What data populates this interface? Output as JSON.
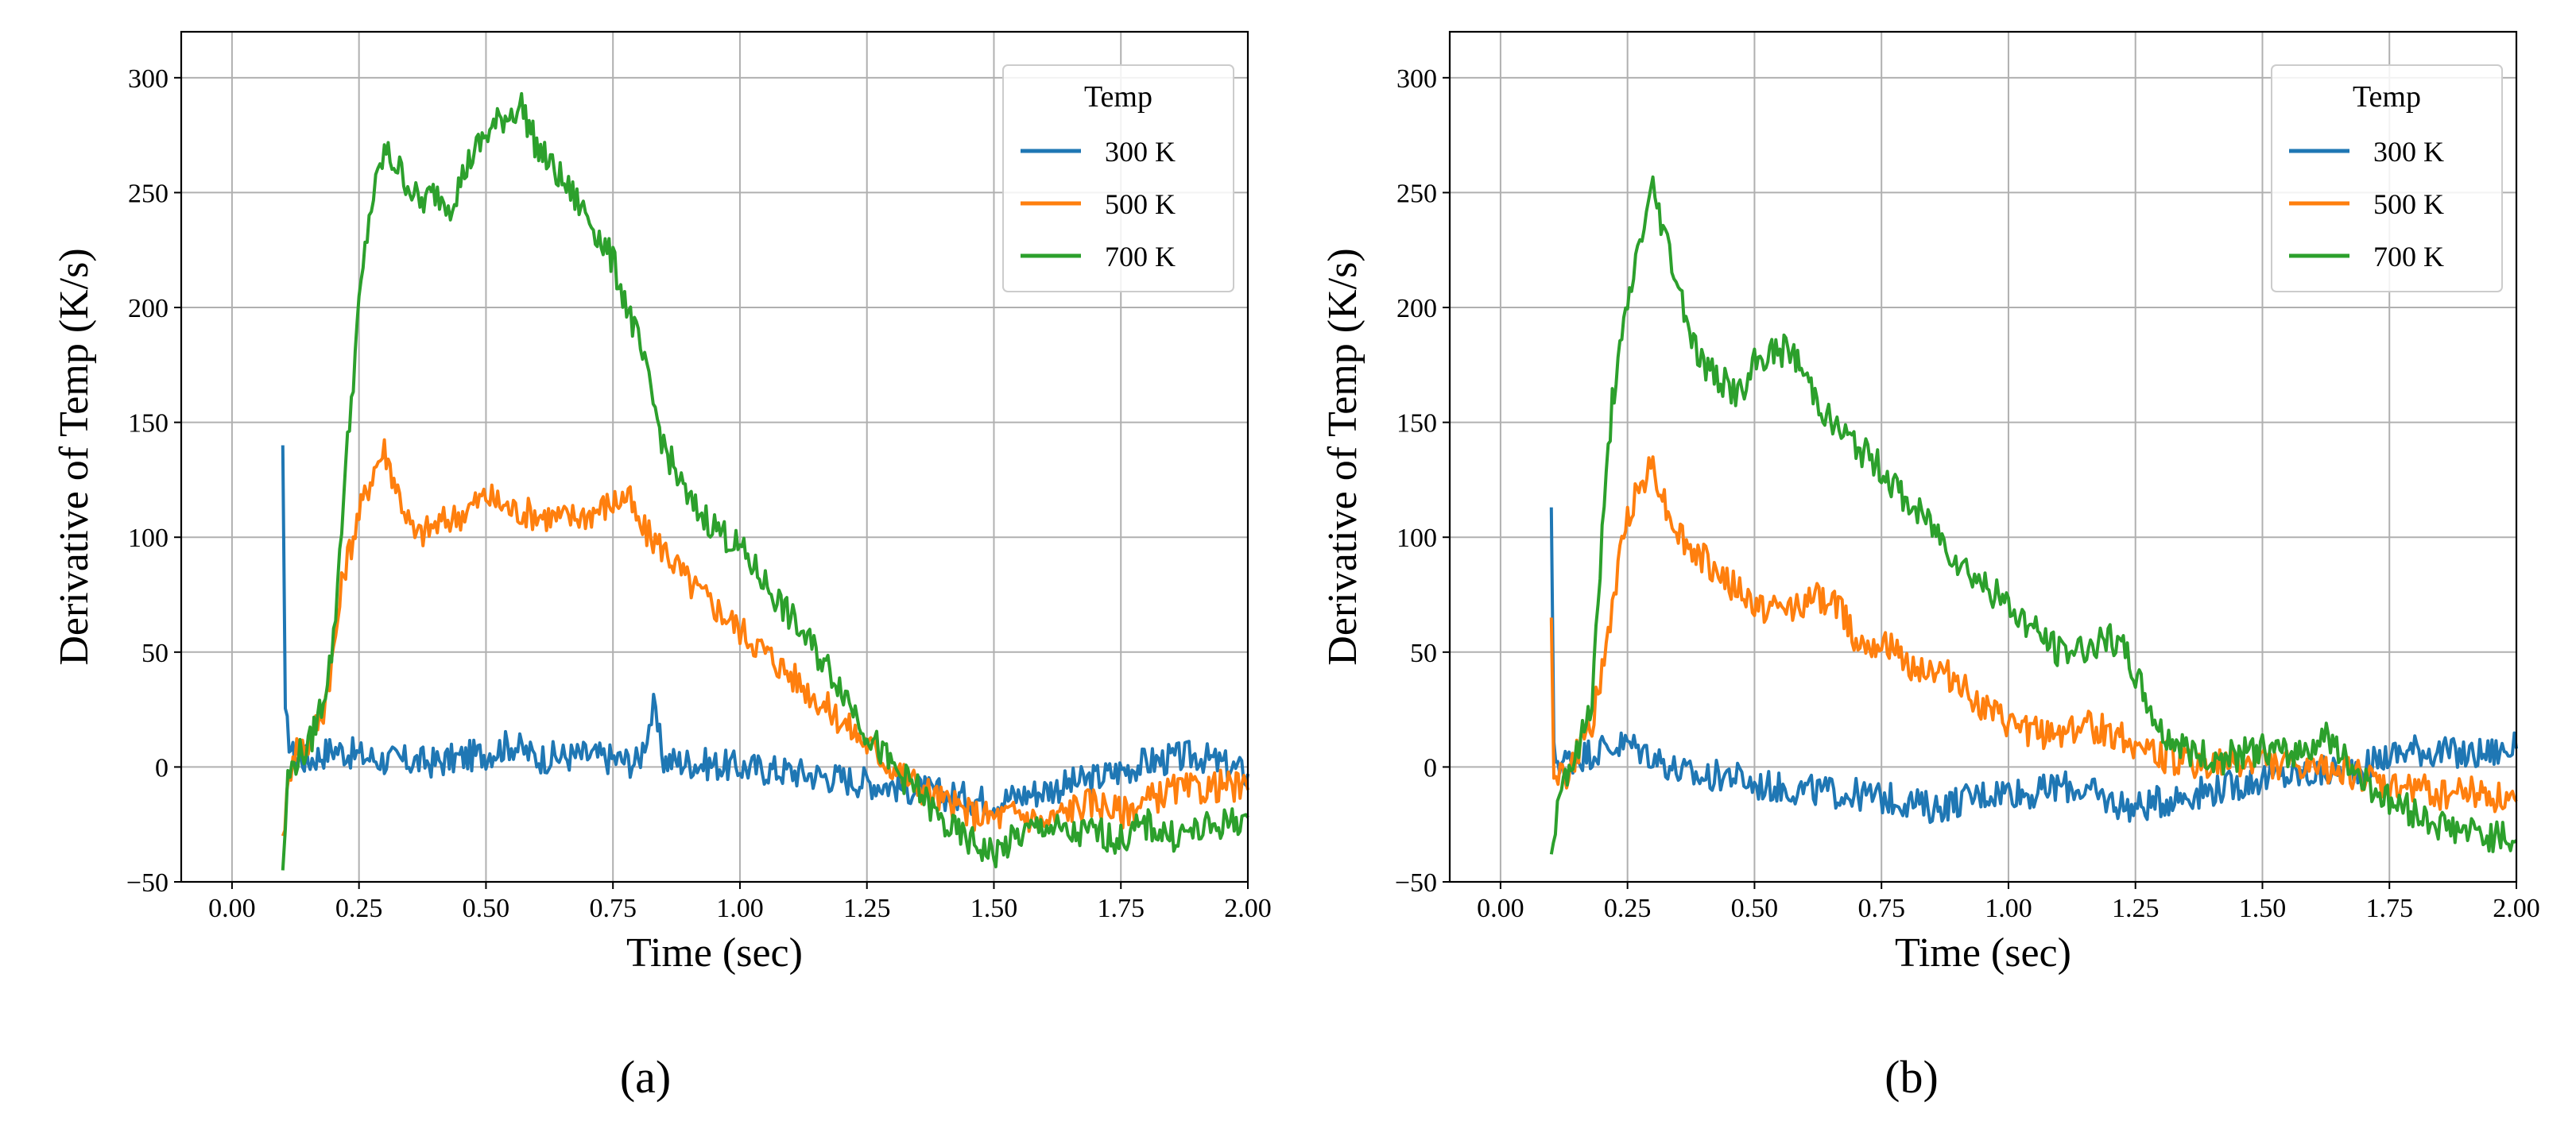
{
  "chart_data": [
    {
      "type": "line",
      "panel_label": "(a)",
      "title": "",
      "xlabel": "Time (sec)",
      "ylabel": "Derivative of Temp (K/s)",
      "xlim": [
        -0.1,
        2.0
      ],
      "ylim": [
        -50,
        320
      ],
      "xticks": [
        "0.00",
        "0.25",
        "0.50",
        "0.75",
        "1.00",
        "1.25",
        "1.50",
        "1.75",
        "2.00"
      ],
      "yticks": [
        "−50",
        "0",
        "50",
        "100",
        "150",
        "200",
        "250",
        "300"
      ],
      "grid": true,
      "legend": {
        "title": "Temp",
        "position": "top-right"
      },
      "series": [
        {
          "name": "300 K",
          "color": "#1f77b4",
          "points": [
            [
              0.1,
              140
            ],
            [
              0.105,
              20
            ],
            [
              0.12,
              5
            ],
            [
              0.15,
              3
            ],
            [
              0.2,
              8
            ],
            [
              0.25,
              5
            ],
            [
              0.3,
              3
            ],
            [
              0.4,
              2
            ],
            [
              0.5,
              6
            ],
            [
              0.55,
              10
            ],
            [
              0.6,
              4
            ],
            [
              0.7,
              5
            ],
            [
              0.8,
              2
            ],
            [
              0.83,
              25
            ],
            [
              0.85,
              3
            ],
            [
              0.9,
              2
            ],
            [
              1.0,
              0
            ],
            [
              1.1,
              -2
            ],
            [
              1.2,
              -5
            ],
            [
              1.3,
              -8
            ],
            [
              1.4,
              -12
            ],
            [
              1.5,
              -15
            ],
            [
              1.6,
              -10
            ],
            [
              1.7,
              -5
            ],
            [
              1.8,
              2
            ],
            [
              1.9,
              5
            ],
            [
              2.0,
              -3
            ]
          ]
        },
        {
          "name": "500 K",
          "color": "#ff7f0e",
          "points": [
            [
              0.1,
              -30
            ],
            [
              0.12,
              8
            ],
            [
              0.15,
              10
            ],
            [
              0.18,
              25
            ],
            [
              0.2,
              50
            ],
            [
              0.22,
              85
            ],
            [
              0.25,
              110
            ],
            [
              0.28,
              130
            ],
            [
              0.3,
              138
            ],
            [
              0.33,
              118
            ],
            [
              0.36,
              100
            ],
            [
              0.4,
              105
            ],
            [
              0.45,
              110
            ],
            [
              0.5,
              118
            ],
            [
              0.55,
              112
            ],
            [
              0.6,
              110
            ],
            [
              0.65,
              108
            ],
            [
              0.7,
              110
            ],
            [
              0.75,
              115
            ],
            [
              0.78,
              118
            ],
            [
              0.8,
              105
            ],
            [
              0.85,
              95
            ],
            [
              0.9,
              80
            ],
            [
              0.95,
              70
            ],
            [
              1.0,
              60
            ],
            [
              1.05,
              50
            ],
            [
              1.1,
              40
            ],
            [
              1.15,
              30
            ],
            [
              1.2,
              20
            ],
            [
              1.25,
              10
            ],
            [
              1.3,
              0
            ],
            [
              1.35,
              -8
            ],
            [
              1.4,
              -15
            ],
            [
              1.45,
              -20
            ],
            [
              1.5,
              -22
            ],
            [
              1.55,
              -20
            ],
            [
              1.6,
              -25
            ],
            [
              1.65,
              -18
            ],
            [
              1.7,
              -15
            ],
            [
              1.75,
              -20
            ],
            [
              1.8,
              -15
            ],
            [
              1.85,
              -10
            ],
            [
              1.9,
              -10
            ],
            [
              1.95,
              -8
            ],
            [
              2.0,
              -10
            ]
          ]
        },
        {
          "name": "700 K",
          "color": "#2ca02c",
          "points": [
            [
              0.1,
              -45
            ],
            [
              0.11,
              -5
            ],
            [
              0.13,
              5
            ],
            [
              0.15,
              8
            ],
            [
              0.18,
              30
            ],
            [
              0.2,
              55
            ],
            [
              0.22,
              120
            ],
            [
              0.25,
              200
            ],
            [
              0.27,
              240
            ],
            [
              0.3,
              268
            ],
            [
              0.33,
              260
            ],
            [
              0.37,
              245
            ],
            [
              0.4,
              250
            ],
            [
              0.43,
              245
            ],
            [
              0.47,
              265
            ],
            [
              0.5,
              275
            ],
            [
              0.53,
              282
            ],
            [
              0.57,
              288
            ],
            [
              0.6,
              270
            ],
            [
              0.65,
              255
            ],
            [
              0.7,
              240
            ],
            [
              0.75,
              220
            ],
            [
              0.8,
              185
            ],
            [
              0.85,
              140
            ],
            [
              0.9,
              115
            ],
            [
              0.95,
              105
            ],
            [
              1.0,
              95
            ],
            [
              1.05,
              80
            ],
            [
              1.1,
              65
            ],
            [
              1.15,
              50
            ],
            [
              1.2,
              35
            ],
            [
              1.25,
              15
            ],
            [
              1.3,
              0
            ],
            [
              1.35,
              -10
            ],
            [
              1.4,
              -25
            ],
            [
              1.45,
              -32
            ],
            [
              1.5,
              -38
            ],
            [
              1.55,
              -30
            ],
            [
              1.6,
              -25
            ],
            [
              1.65,
              -30
            ],
            [
              1.7,
              -28
            ],
            [
              1.75,
              -32
            ],
            [
              1.8,
              -25
            ],
            [
              1.85,
              -30
            ],
            [
              1.9,
              -28
            ],
            [
              1.95,
              -25
            ],
            [
              2.0,
              -22
            ]
          ]
        }
      ]
    },
    {
      "type": "line",
      "panel_label": "(b)",
      "title": "",
      "xlabel": "Time (sec)",
      "ylabel": "Derivative of Temp (K/s)",
      "xlim": [
        -0.1,
        2.0
      ],
      "ylim": [
        -50,
        320
      ],
      "xticks": [
        "0.00",
        "0.25",
        "0.50",
        "0.75",
        "1.00",
        "1.25",
        "1.50",
        "1.75",
        "2.00"
      ],
      "yticks": [
        "−50",
        "0",
        "50",
        "100",
        "150",
        "200",
        "250",
        "300"
      ],
      "grid": true,
      "legend": {
        "title": "Temp",
        "position": "top-right"
      },
      "series": [
        {
          "name": "300 K",
          "color": "#1f77b4",
          "points": [
            [
              0.1,
              113
            ],
            [
              0.105,
              5
            ],
            [
              0.12,
              2
            ],
            [
              0.15,
              4
            ],
            [
              0.2,
              8
            ],
            [
              0.25,
              10
            ],
            [
              0.3,
              5
            ],
            [
              0.35,
              -2
            ],
            [
              0.4,
              -5
            ],
            [
              0.45,
              -3
            ],
            [
              0.5,
              -8
            ],
            [
              0.6,
              -10
            ],
            [
              0.7,
              -12
            ],
            [
              0.8,
              -15
            ],
            [
              0.85,
              -18
            ],
            [
              0.9,
              -15
            ],
            [
              0.95,
              -12
            ],
            [
              1.0,
              -10
            ],
            [
              1.05,
              -12
            ],
            [
              1.1,
              -8
            ],
            [
              1.15,
              -10
            ],
            [
              1.2,
              -15
            ],
            [
              1.25,
              -18
            ],
            [
              1.3,
              -15
            ],
            [
              1.35,
              -12
            ],
            [
              1.4,
              -10
            ],
            [
              1.45,
              -8
            ],
            [
              1.5,
              -5
            ],
            [
              1.6,
              -3
            ],
            [
              1.7,
              0
            ],
            [
              1.75,
              5
            ],
            [
              1.8,
              8
            ],
            [
              1.9,
              5
            ],
            [
              2.0,
              8
            ]
          ]
        },
        {
          "name": "500 K",
          "color": "#ff7f0e",
          "points": [
            [
              0.1,
              65
            ],
            [
              0.105,
              0
            ],
            [
              0.13,
              -5
            ],
            [
              0.15,
              5
            ],
            [
              0.18,
              20
            ],
            [
              0.2,
              40
            ],
            [
              0.22,
              70
            ],
            [
              0.25,
              110
            ],
            [
              0.28,
              125
            ],
            [
              0.3,
              132
            ],
            [
              0.33,
              110
            ],
            [
              0.37,
              95
            ],
            [
              0.4,
              90
            ],
            [
              0.45,
              80
            ],
            [
              0.5,
              70
            ],
            [
              0.55,
              68
            ],
            [
              0.6,
              72
            ],
            [
              0.65,
              74
            ],
            [
              0.68,
              65
            ],
            [
              0.7,
              55
            ],
            [
              0.75,
              55
            ],
            [
              0.8,
              45
            ],
            [
              0.85,
              42
            ],
            [
              0.9,
              38
            ],
            [
              0.93,
              30
            ],
            [
              0.95,
              25
            ],
            [
              1.0,
              18
            ],
            [
              1.05,
              15
            ],
            [
              1.1,
              15
            ],
            [
              1.15,
              18
            ],
            [
              1.2,
              15
            ],
            [
              1.25,
              10
            ],
            [
              1.3,
              5
            ],
            [
              1.35,
              2
            ],
            [
              1.4,
              0
            ],
            [
              1.5,
              3
            ],
            [
              1.6,
              -2
            ],
            [
              1.65,
              0
            ],
            [
              1.7,
              -5
            ],
            [
              1.75,
              -10
            ],
            [
              1.8,
              -8
            ],
            [
              1.85,
              -12
            ],
            [
              1.9,
              -10
            ],
            [
              1.95,
              -12
            ],
            [
              2.0,
              -15
            ]
          ]
        },
        {
          "name": "700 K",
          "color": "#2ca02c",
          "points": [
            [
              0.1,
              -38
            ],
            [
              0.12,
              -5
            ],
            [
              0.15,
              5
            ],
            [
              0.18,
              30
            ],
            [
              0.2,
              100
            ],
            [
              0.22,
              160
            ],
            [
              0.25,
              200
            ],
            [
              0.27,
              225
            ],
            [
              0.3,
              252
            ],
            [
              0.32,
              235
            ],
            [
              0.35,
              210
            ],
            [
              0.38,
              185
            ],
            [
              0.4,
              175
            ],
            [
              0.45,
              165
            ],
            [
              0.48,
              162
            ],
            [
              0.5,
              175
            ],
            [
              0.53,
              180
            ],
            [
              0.57,
              182
            ],
            [
              0.6,
              170
            ],
            [
              0.65,
              150
            ],
            [
              0.7,
              140
            ],
            [
              0.75,
              130
            ],
            [
              0.8,
              115
            ],
            [
              0.85,
              105
            ],
            [
              0.9,
              90
            ],
            [
              0.95,
              80
            ],
            [
              1.0,
              70
            ],
            [
              1.05,
              60
            ],
            [
              1.1,
              50
            ],
            [
              1.15,
              52
            ],
            [
              1.2,
              55
            ],
            [
              1.23,
              50
            ],
            [
              1.25,
              40
            ],
            [
              1.28,
              25
            ],
            [
              1.3,
              15
            ],
            [
              1.35,
              8
            ],
            [
              1.4,
              3
            ],
            [
              1.45,
              5
            ],
            [
              1.5,
              8
            ],
            [
              1.55,
              5
            ],
            [
              1.6,
              10
            ],
            [
              1.63,
              15
            ],
            [
              1.65,
              5
            ],
            [
              1.7,
              -5
            ],
            [
              1.75,
              -15
            ],
            [
              1.8,
              -20
            ],
            [
              1.85,
              -25
            ],
            [
              1.9,
              -28
            ],
            [
              1.95,
              -30
            ],
            [
              2.0,
              -32
            ]
          ]
        }
      ]
    }
  ]
}
